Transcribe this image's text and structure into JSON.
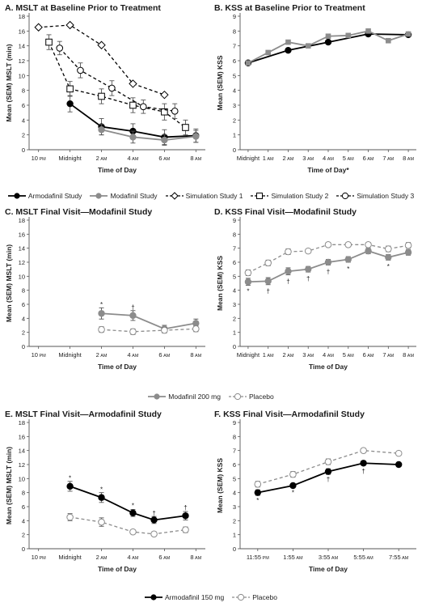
{
  "legends": {
    "top": [
      "Armodafinil Study",
      "Modafinil Study",
      "Simulation Study 1",
      "Simulation Study 2",
      "Simulation Study 3"
    ],
    "middle": [
      "Modafinil 200 mg",
      "Placebo"
    ],
    "bottom": [
      "Armodafinil 150 mg",
      "Placebo"
    ]
  },
  "chart_data": [
    {
      "id": "A",
      "type": "line",
      "title": "A. MSLT at Baseline Prior to Treatment",
      "xlabel": "Time of Day",
      "ylabel": "Mean (SEM) MSLT (min)",
      "ylim": [
        0,
        18
      ],
      "yticks": [
        0,
        2,
        4,
        6,
        8,
        10,
        12,
        14,
        16,
        18
      ],
      "xlim": [
        -0.3,
        5.3
      ],
      "xticks": [
        {
          "x": 0,
          "main": "10",
          "sub": "PM"
        },
        {
          "x": 1,
          "main": "Midnight",
          "sub": ""
        },
        {
          "x": 2,
          "main": "2",
          "sub": "AM"
        },
        {
          "x": 3,
          "main": "4",
          "sub": "AM"
        },
        {
          "x": 4,
          "main": "6",
          "sub": "AM"
        },
        {
          "x": 5,
          "main": "8",
          "sub": "AM"
        }
      ],
      "series": [
        {
          "name": "Armodafinil Study",
          "marker": "filled-circle",
          "dash": false,
          "color": "#000000",
          "points": [
            [
              1,
              6.2,
              1.1
            ],
            [
              2,
              3.1,
              1.1
            ],
            [
              3,
              2.5,
              1.0
            ],
            [
              4,
              1.7,
              1.0
            ],
            [
              5,
              1.9,
              0.9
            ]
          ]
        },
        {
          "name": "Modafinil Study",
          "marker": "filled-circle-gray",
          "dash": false,
          "color": "#8c8c8c",
          "points": [
            [
              2,
              2.7,
              0.7
            ],
            [
              3,
              1.7,
              0.8
            ],
            [
              4,
              1.3,
              0.7
            ],
            [
              5,
              1.8,
              0.8
            ]
          ]
        },
        {
          "name": "Simulation Study 1",
          "marker": "diamond",
          "dash": true,
          "color": "#000000",
          "points": [
            [
              0,
              16.5,
              0
            ],
            [
              1,
              16.8,
              0
            ],
            [
              2,
              14.1,
              0
            ],
            [
              3,
              8.9,
              0
            ],
            [
              4,
              7.4,
              0
            ]
          ]
        },
        {
          "name": "Simulation Study 2",
          "marker": "square",
          "dash": true,
          "color": "#000000",
          "points": [
            [
              0.33,
              14.5,
              1.0
            ],
            [
              1,
              8.2,
              1.0
            ],
            [
              2,
              7.2,
              1.0
            ],
            [
              3,
              6.0,
              1.0
            ],
            [
              4,
              5.1,
              1.1
            ],
            [
              4.67,
              3.0,
              1.0
            ]
          ]
        },
        {
          "name": "Simulation Study 3",
          "marker": "open-circle",
          "dash": true,
          "color": "#000000",
          "points": [
            [
              0.67,
              13.7,
              0.9
            ],
            [
              1.33,
              10.7,
              1.0
            ],
            [
              2.33,
              8.3,
              1.0
            ],
            [
              3.33,
              5.8,
              0.9
            ],
            [
              4.33,
              5.2,
              1.0
            ]
          ]
        }
      ],
      "annotations": []
    },
    {
      "id": "B",
      "type": "line",
      "title": "B. KSS at Baseline Prior to Treatment",
      "xlabel": "Time of Day*",
      "ylabel": "Mean (SEM) KSS",
      "ylim": [
        0,
        9
      ],
      "yticks": [
        0,
        1,
        2,
        3,
        4,
        5,
        6,
        7,
        8,
        9
      ],
      "xlim": [
        -0.4,
        8.4
      ],
      "xticks": [
        {
          "x": 0,
          "main": "Midnight",
          "sub": ""
        },
        {
          "x": 1,
          "main": "1",
          "sub": "AM"
        },
        {
          "x": 2,
          "main": "2",
          "sub": "AM"
        },
        {
          "x": 3,
          "main": "3",
          "sub": "AM"
        },
        {
          "x": 4,
          "main": "4",
          "sub": "AM"
        },
        {
          "x": 5,
          "main": "5",
          "sub": "AM"
        },
        {
          "x": 6,
          "main": "6",
          "sub": "AM"
        },
        {
          "x": 7,
          "main": "7",
          "sub": "AM"
        },
        {
          "x": 8,
          "main": "8",
          "sub": "AM"
        }
      ],
      "series": [
        {
          "name": "Armodafinil Study",
          "marker": "filled-circle",
          "dash": false,
          "color": "#000000",
          "points": [
            [
              0,
              5.85,
              0.1
            ],
            [
              2,
              6.7,
              0.1
            ],
            [
              4,
              7.25,
              0.1
            ],
            [
              6,
              7.8,
              0.1
            ],
            [
              8,
              7.75,
              0.1
            ]
          ]
        },
        {
          "name": "Modafinil Study",
          "marker": "filled-square-gray",
          "dash": false,
          "color": "#8c8c8c",
          "points": [
            [
              0,
              5.85,
              0.1
            ],
            [
              1,
              6.55,
              0.1
            ],
            [
              2,
              7.25,
              0.1
            ],
            [
              3,
              7.0,
              0.1
            ],
            [
              4,
              7.65,
              0.1
            ],
            [
              5,
              7.7,
              0.1
            ],
            [
              6,
              8.0,
              0.1
            ],
            [
              7,
              7.35,
              0.1
            ],
            [
              8,
              7.8,
              0.1
            ]
          ]
        }
      ],
      "annotations": []
    },
    {
      "id": "C",
      "type": "line",
      "title": "C. MSLT Final Visit—Modafinil Study",
      "xlabel": "Time of Day",
      "ylabel": "Mean (SEM) MSLT (min)",
      "ylim": [
        0,
        18
      ],
      "yticks": [
        0,
        2,
        4,
        6,
        8,
        10,
        12,
        14,
        16,
        18
      ],
      "xlim": [
        -0.3,
        5.3
      ],
      "xticks": [
        {
          "x": 0,
          "main": "10",
          "sub": "PM"
        },
        {
          "x": 1,
          "main": "Midnight",
          "sub": ""
        },
        {
          "x": 2,
          "main": "2",
          "sub": "AM"
        },
        {
          "x": 3,
          "main": "4",
          "sub": "AM"
        },
        {
          "x": 4,
          "main": "6",
          "sub": "AM"
        },
        {
          "x": 5,
          "main": "8",
          "sub": "AM"
        }
      ],
      "series": [
        {
          "name": "Modafinil 200 mg",
          "marker": "filled-circle-gray",
          "dash": false,
          "color": "#8c8c8c",
          "points": [
            [
              2,
              4.7,
              0.8
            ],
            [
              3,
              4.4,
              0.7
            ],
            [
              4,
              2.5,
              0.5
            ],
            [
              5,
              3.3,
              0.6
            ]
          ]
        },
        {
          "name": "Placebo",
          "marker": "open-circle-gray",
          "dash": true,
          "color": "#8c8c8c",
          "points": [
            [
              2,
              2.4,
              0.4
            ],
            [
              3,
              2.1,
              0.4
            ],
            [
              4,
              2.3,
              0.4
            ],
            [
              5,
              2.5,
              0.4
            ]
          ]
        }
      ],
      "annotations": [
        {
          "x": 2,
          "y": 6.0,
          "text": "*"
        },
        {
          "x": 3,
          "y": 5.6,
          "text": "†"
        }
      ]
    },
    {
      "id": "D",
      "type": "line",
      "title": "D. KSS Final Visit—Modafinil Study",
      "xlabel": "Time of Day",
      "ylabel": "Mean (SEM) KSS",
      "ylim": [
        0,
        9
      ],
      "yticks": [
        0,
        1,
        2,
        3,
        4,
        5,
        6,
        7,
        8,
        9
      ],
      "xlim": [
        -0.4,
        8.4
      ],
      "xticks": [
        {
          "x": 0,
          "main": "Midnight",
          "sub": ""
        },
        {
          "x": 1,
          "main": "1",
          "sub": "AM"
        },
        {
          "x": 2,
          "main": "2",
          "sub": "AM"
        },
        {
          "x": 3,
          "main": "3",
          "sub": "AM"
        },
        {
          "x": 4,
          "main": "4",
          "sub": "AM"
        },
        {
          "x": 5,
          "main": "5",
          "sub": "AM"
        },
        {
          "x": 6,
          "main": "6",
          "sub": "AM"
        },
        {
          "x": 7,
          "main": "7",
          "sub": "AM"
        },
        {
          "x": 8,
          "main": "8",
          "sub": "AM"
        }
      ],
      "series": [
        {
          "name": "Modafinil 200 mg",
          "marker": "filled-circle-gray",
          "dash": false,
          "color": "#8c8c8c",
          "points": [
            [
              0,
              4.6,
              0.25
            ],
            [
              1,
              4.65,
              0.25
            ],
            [
              2,
              5.35,
              0.25
            ],
            [
              3,
              5.5,
              0.2
            ],
            [
              4,
              6.0,
              0.2
            ],
            [
              5,
              6.2,
              0.2
            ],
            [
              6,
              6.8,
              0.2
            ],
            [
              7,
              6.35,
              0.2
            ],
            [
              8,
              6.7,
              0.2
            ]
          ]
        },
        {
          "name": "Placebo",
          "marker": "open-circle-gray",
          "dash": true,
          "color": "#8c8c8c",
          "points": [
            [
              0,
              5.25,
              0.2
            ],
            [
              1,
              5.95,
              0.2
            ],
            [
              2,
              6.75,
              0.2
            ],
            [
              3,
              6.8,
              0.15
            ],
            [
              4,
              7.25,
              0.15
            ],
            [
              5,
              7.25,
              0.15
            ],
            [
              6,
              7.25,
              0.15
            ],
            [
              7,
              6.95,
              0.2
            ],
            [
              8,
              7.2,
              0.2
            ]
          ]
        }
      ],
      "annotations": [
        {
          "x": 0,
          "y": 3.95,
          "text": "*"
        },
        {
          "x": 1,
          "y": 3.95,
          "text": "†"
        },
        {
          "x": 2,
          "y": 4.65,
          "text": "†"
        },
        {
          "x": 3,
          "y": 4.85,
          "text": "†"
        },
        {
          "x": 4,
          "y": 5.35,
          "text": "†"
        },
        {
          "x": 5,
          "y": 5.55,
          "text": "*"
        },
        {
          "x": 7,
          "y": 5.7,
          "text": "*"
        }
      ]
    },
    {
      "id": "E",
      "type": "line",
      "title": "E. MSLT Final Visit—Armodafinil Study",
      "xlabel": "Time of Day",
      "ylabel": "Mean (SEM) MSLT (min)",
      "ylim": [
        0,
        18
      ],
      "yticks": [
        0,
        2,
        4,
        6,
        8,
        10,
        12,
        14,
        16,
        18
      ],
      "xlim": [
        -0.3,
        5.3
      ],
      "xticks": [
        {
          "x": 0,
          "main": "10",
          "sub": "PM"
        },
        {
          "x": 1,
          "main": "Midnight",
          "sub": ""
        },
        {
          "x": 2,
          "main": "2",
          "sub": "AM"
        },
        {
          "x": 3,
          "main": "4",
          "sub": "AM"
        },
        {
          "x": 4,
          "main": "6",
          "sub": "AM"
        },
        {
          "x": 5,
          "main": "8",
          "sub": "AM"
        }
      ],
      "series": [
        {
          "name": "Armodafinil 150 mg",
          "marker": "filled-circle",
          "dash": false,
          "color": "#000000",
          "points": [
            [
              1,
              8.9,
              0.7
            ],
            [
              2,
              7.3,
              0.7
            ],
            [
              3,
              5.1,
              0.5
            ],
            [
              3.67,
              4.1,
              0.5
            ],
            [
              4.67,
              4.7,
              0.6
            ]
          ]
        },
        {
          "name": "Placebo",
          "marker": "open-circle-gray",
          "dash": true,
          "color": "#8c8c8c",
          "points": [
            [
              1,
              4.5,
              0.5
            ],
            [
              2,
              3.8,
              0.6
            ],
            [
              3,
              2.4,
              0.3
            ],
            [
              3.67,
              2.1,
              0.3
            ],
            [
              4.67,
              2.7,
              0.4
            ]
          ]
        }
      ],
      "annotations": [
        {
          "x": 1,
          "y": 10.1,
          "text": "*"
        },
        {
          "x": 2,
          "y": 8.5,
          "text": "*"
        },
        {
          "x": 3,
          "y": 6.2,
          "text": "*"
        },
        {
          "x": 3.67,
          "y": 5.1,
          "text": "†"
        },
        {
          "x": 4.67,
          "y": 5.9,
          "text": "†"
        }
      ]
    },
    {
      "id": "F",
      "type": "line",
      "title": "F. KSS Final Visit—Armodafinil Study",
      "xlabel": "Time of Day",
      "ylabel": "Mean (SEM) KSS",
      "ylim": [
        0,
        9
      ],
      "yticks": [
        0,
        1,
        2,
        3,
        4,
        5,
        6,
        7,
        8,
        9
      ],
      "xlim": [
        -0.5,
        4.5
      ],
      "xticks": [
        {
          "x": 0,
          "main": "11:55",
          "sub": "PM"
        },
        {
          "x": 1,
          "main": "1:55",
          "sub": "AM"
        },
        {
          "x": 2,
          "main": "3:55",
          "sub": "AM"
        },
        {
          "x": 3,
          "main": "5:55",
          "sub": "AM"
        },
        {
          "x": 4,
          "main": "7:55",
          "sub": "AM"
        }
      ],
      "series": [
        {
          "name": "Armodafinil 150 mg",
          "marker": "filled-circle",
          "dash": false,
          "color": "#000000",
          "points": [
            [
              0,
              4.0,
              0.2
            ],
            [
              1,
              4.5,
              0.15
            ],
            [
              2,
              5.5,
              0.2
            ],
            [
              3,
              6.1,
              0.15
            ],
            [
              4,
              6.0,
              0.15
            ]
          ]
        },
        {
          "name": "Placebo",
          "marker": "open-circle-gray",
          "dash": true,
          "color": "#8c8c8c",
          "points": [
            [
              0,
              4.6,
              0.2
            ],
            [
              1,
              5.3,
              0.2
            ],
            [
              2,
              6.2,
              0.2
            ],
            [
              3,
              7.0,
              0.15
            ],
            [
              4,
              6.8,
              0.15
            ]
          ]
        }
      ],
      "annotations": [
        {
          "x": 0,
          "y": 3.45,
          "text": "*"
        },
        {
          "x": 1,
          "y": 4.0,
          "text": "*"
        },
        {
          "x": 2,
          "y": 4.95,
          "text": "†"
        },
        {
          "x": 3,
          "y": 5.55,
          "text": "†"
        }
      ]
    }
  ]
}
